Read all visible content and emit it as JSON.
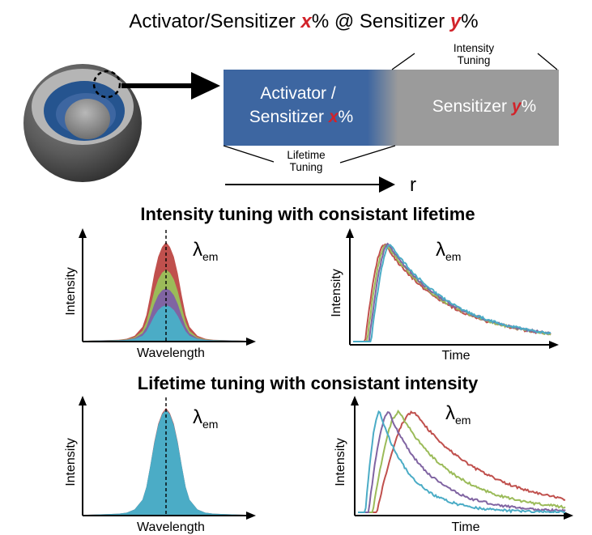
{
  "title": {
    "prefix": "Activator/Sensitizer ",
    "var_x": "x",
    "middle": "% @ Sensitizer ",
    "var_y": "y",
    "suffix": "%"
  },
  "layer_diagram": {
    "activator_line1": "Activator /",
    "activator_line2_prefix": "Sensitizer ",
    "var_x": "x",
    "percent": "%",
    "sensitizer_prefix": "Sensitizer ",
    "var_y": "y",
    "intensity_tuning": [
      "Intensity",
      "Tuning"
    ],
    "lifetime_tuning": [
      "Lifetime",
      "Tuning"
    ],
    "radius_label": "r"
  },
  "colors": {
    "activator_blue": "#3d66a1",
    "sensitizer_gray": "#9b9b9b",
    "highlight_red": "#d2232a",
    "series_red": "#c0504d",
    "series_green": "#9bbb59",
    "series_purple": "#8064a2",
    "series_cyan": "#4bacc6"
  },
  "sections": {
    "intensity": "Intensity tuning with consistant lifetime",
    "lifetime": "Lifetime tuning with consistant intensity"
  },
  "chart_data": [
    {
      "type": "area",
      "id": "intensity_spectrum",
      "xlabel": "Wavelength",
      "ylabel": "Intensity",
      "annotation": {
        "symbol": "λ",
        "subscript": "em"
      },
      "x": [
        -10,
        -8,
        -6,
        -5,
        -4,
        -3,
        -2.5,
        -2,
        -1.5,
        -1,
        -0.5,
        0,
        0.5,
        1,
        1.5,
        2,
        2.5,
        3,
        4,
        5,
        6,
        8,
        10
      ],
      "series": [
        {
          "color": "#c0504d",
          "values": [
            0,
            0.005,
            0.01,
            0.02,
            0.05,
            0.14,
            0.26,
            0.46,
            0.68,
            0.85,
            0.95,
            1.0,
            0.95,
            0.85,
            0.68,
            0.46,
            0.26,
            0.14,
            0.05,
            0.02,
            0.01,
            0.005,
            0
          ]
        },
        {
          "color": "#9bbb59",
          "values": [
            0,
            0.004,
            0.008,
            0.015,
            0.035,
            0.1,
            0.19,
            0.34,
            0.5,
            0.62,
            0.69,
            0.72,
            0.69,
            0.62,
            0.5,
            0.34,
            0.19,
            0.1,
            0.035,
            0.015,
            0.008,
            0.004,
            0
          ]
        },
        {
          "color": "#8064a2",
          "values": [
            0,
            0.003,
            0.006,
            0.011,
            0.026,
            0.075,
            0.14,
            0.25,
            0.37,
            0.46,
            0.51,
            0.53,
            0.51,
            0.46,
            0.37,
            0.25,
            0.14,
            0.075,
            0.026,
            0.011,
            0.006,
            0.003,
            0
          ]
        },
        {
          "color": "#4bacc6",
          "values": [
            0,
            0.002,
            0.004,
            0.008,
            0.018,
            0.05,
            0.095,
            0.17,
            0.25,
            0.31,
            0.345,
            0.36,
            0.345,
            0.31,
            0.25,
            0.17,
            0.095,
            0.05,
            0.018,
            0.008,
            0.004,
            0.002,
            0
          ]
        }
      ],
      "dashed_center_x": 0
    },
    {
      "type": "line",
      "id": "intensity_decay",
      "xlabel": "Time",
      "ylabel": "Intensity",
      "annotation": {
        "symbol": "λ",
        "subscript": "em"
      },
      "xlim": [
        0,
        10
      ],
      "series": [
        {
          "color": "#c0504d",
          "onset": 0.6,
          "rise": 1.0,
          "tau": 3.3
        },
        {
          "color": "#9bbb59",
          "onset": 0.7,
          "rise": 1.0,
          "tau": 3.3
        },
        {
          "color": "#8064a2",
          "onset": 0.8,
          "rise": 1.0,
          "tau": 3.3
        },
        {
          "color": "#4bacc6",
          "onset": 0.9,
          "rise": 1.0,
          "tau": 3.3
        }
      ]
    },
    {
      "type": "area",
      "id": "lifetime_spectrum",
      "xlabel": "Wavelength",
      "ylabel": "Intensity",
      "annotation": {
        "symbol": "λ",
        "subscript": "em"
      },
      "x": [
        -10,
        -8,
        -6,
        -5,
        -4,
        -3,
        -2.5,
        -2,
        -1.5,
        -1,
        -0.5,
        0,
        0.5,
        1,
        1.5,
        2,
        2.5,
        3,
        4,
        5,
        6,
        8,
        10
      ],
      "series": [
        {
          "color": "#c0504d",
          "values": [
            0,
            0.005,
            0.01,
            0.02,
            0.05,
            0.14,
            0.26,
            0.46,
            0.68,
            0.85,
            0.95,
            1.0,
            0.95,
            0.85,
            0.68,
            0.46,
            0.26,
            0.14,
            0.05,
            0.02,
            0.01,
            0.005,
            0
          ]
        },
        {
          "color": "#4bacc6",
          "values": [
            0,
            0.005,
            0.01,
            0.02,
            0.05,
            0.14,
            0.26,
            0.46,
            0.67,
            0.84,
            0.94,
            0.985,
            0.94,
            0.84,
            0.67,
            0.46,
            0.26,
            0.14,
            0.05,
            0.02,
            0.01,
            0.005,
            0
          ]
        }
      ],
      "dashed_center_x": 0
    },
    {
      "type": "line",
      "id": "lifetime_decay",
      "xlabel": "Time",
      "ylabel": "Intensity",
      "annotation": {
        "symbol": "λ",
        "subscript": "em"
      },
      "xlim": [
        0,
        10
      ],
      "series": [
        {
          "color": "#c0504d",
          "onset": 0.9,
          "rise": 1.8,
          "tau": 3.6
        },
        {
          "color": "#9bbb59",
          "onset": 0.7,
          "rise": 1.3,
          "tau": 2.7
        },
        {
          "color": "#8064a2",
          "onset": 0.5,
          "rise": 1.0,
          "tau": 2.0
        },
        {
          "color": "#4bacc6",
          "onset": 0.35,
          "rise": 0.7,
          "tau": 1.5
        }
      ]
    }
  ]
}
